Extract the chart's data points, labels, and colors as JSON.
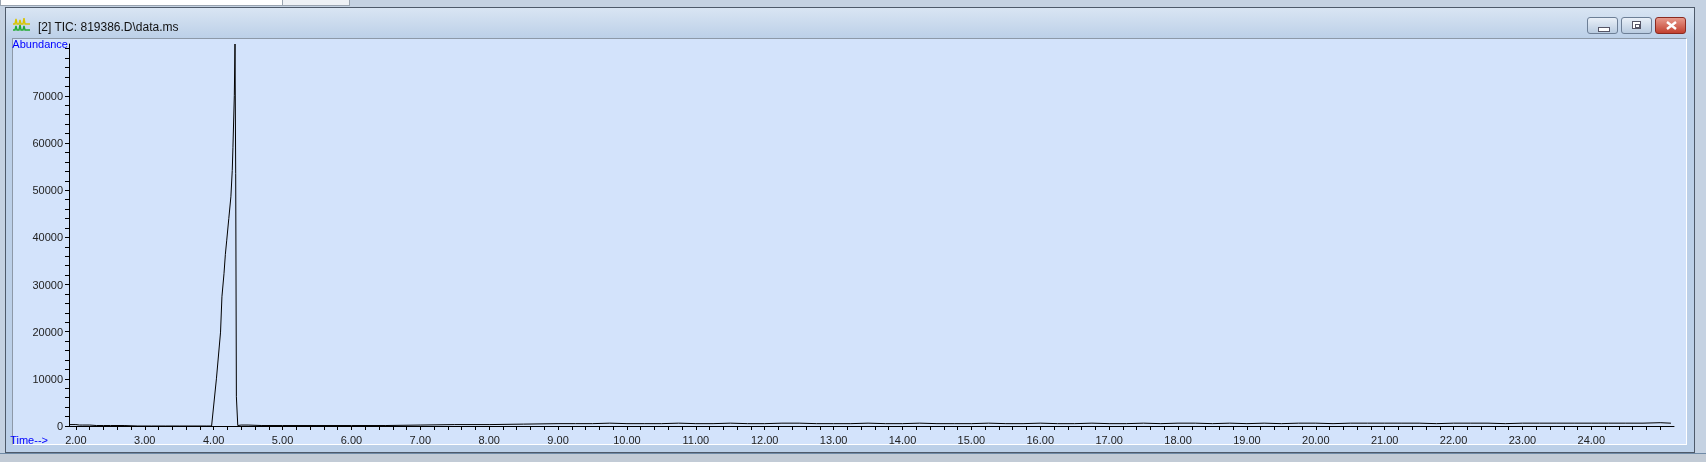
{
  "chart_data": {
    "type": "line",
    "title": "[2] TIC: 819386.D\\data.ms",
    "xlabel": "Time-->",
    "ylabel": "Abundance",
    "color": "#000000",
    "x": [
      1.92,
      2.0,
      2.05,
      2.1,
      2.2,
      2.3,
      2.4,
      2.5,
      2.7,
      2.9,
      3.1,
      3.3,
      3.5,
      3.7,
      3.9,
      3.97,
      4.04,
      4.1,
      4.12,
      4.15,
      4.17,
      4.19,
      4.22,
      4.25,
      4.27,
      4.28,
      4.3,
      4.31,
      4.32,
      4.33,
      4.35,
      4.4,
      4.5,
      4.7,
      5.0,
      5.5,
      6.0,
      6.5,
      7.0,
      7.5,
      8.0,
      8.5,
      9.0,
      9.25,
      9.5,
      9.75,
      10.0,
      10.25,
      10.5,
      10.75,
      11.0,
      11.25,
      11.5,
      11.75,
      12.0,
      12.25,
      12.5,
      12.75,
      13.0,
      13.25,
      13.5,
      13.75,
      14.0,
      14.25,
      14.5,
      14.75,
      15.0,
      15.25,
      15.5,
      15.75,
      16.0,
      16.25,
      16.5,
      16.75,
      17.0,
      17.25,
      17.5,
      17.75,
      18.0,
      18.25,
      18.5,
      18.75,
      19.0,
      19.25,
      19.5,
      19.75,
      20.0,
      20.25,
      20.5,
      20.75,
      21.0,
      21.25,
      21.5,
      21.75,
      22.0,
      22.25,
      22.5,
      22.75,
      23.0,
      23.25,
      23.5,
      23.75,
      24.0,
      24.25,
      24.5,
      24.75,
      25.0,
      25.15
    ],
    "values": [
      300,
      300,
      200,
      200,
      200,
      100,
      100,
      100,
      100,
      0,
      0,
      0,
      0,
      0,
      0,
      0,
      10000,
      19900,
      27400,
      32300,
      36400,
      39400,
      44000,
      48600,
      54200,
      59100,
      70100,
      81000,
      53500,
      6200,
      100,
      200,
      200,
      100,
      100,
      100,
      100,
      100,
      200,
      300,
      300,
      400,
      500,
      500,
      500,
      600,
      500,
      500,
      500,
      600,
      500,
      500,
      600,
      500,
      500,
      600,
      600,
      500,
      500,
      500,
      600,
      500,
      500,
      600,
      500,
      500,
      500,
      600,
      500,
      500,
      600,
      500,
      500,
      600,
      500,
      500,
      600,
      500,
      600,
      600,
      500,
      600,
      500,
      600,
      500,
      600,
      600,
      500,
      600,
      600,
      600,
      600,
      600,
      500,
      600,
      600,
      600,
      500,
      600,
      600,
      600,
      600,
      600,
      600,
      600,
      600,
      700,
      600
    ],
    "xlim": [
      1.9,
      25.2
    ],
    "xticks": [
      {
        "value": 2,
        "label": "2.00"
      },
      {
        "value": 2.2,
        "label": null
      },
      {
        "value": 2.4,
        "label": null
      },
      {
        "value": 2.6,
        "label": null
      },
      {
        "value": 2.8,
        "label": null
      },
      {
        "value": 3,
        "label": "3.00"
      },
      {
        "value": 3.2,
        "label": null
      },
      {
        "value": 3.4,
        "label": null
      },
      {
        "value": 3.6,
        "label": null
      },
      {
        "value": 3.8,
        "label": null
      },
      {
        "value": 4,
        "label": "4.00"
      },
      {
        "value": 4.2,
        "label": null
      },
      {
        "value": 4.4,
        "label": null
      },
      {
        "value": 4.6,
        "label": null
      },
      {
        "value": 4.8,
        "label": null
      },
      {
        "value": 5,
        "label": "5.00"
      },
      {
        "value": 5.2,
        "label": null
      },
      {
        "value": 5.4,
        "label": null
      },
      {
        "value": 5.6,
        "label": null
      },
      {
        "value": 5.8,
        "label": null
      },
      {
        "value": 6,
        "label": "6.00"
      },
      {
        "value": 6.2,
        "label": null
      },
      {
        "value": 6.4,
        "label": null
      },
      {
        "value": 6.6,
        "label": null
      },
      {
        "value": 6.8,
        "label": null
      },
      {
        "value": 7,
        "label": "7.00"
      },
      {
        "value": 7.2,
        "label": null
      },
      {
        "value": 7.4,
        "label": null
      },
      {
        "value": 7.6,
        "label": null
      },
      {
        "value": 7.8,
        "label": null
      },
      {
        "value": 8,
        "label": "8.00"
      },
      {
        "value": 8.2,
        "label": null
      },
      {
        "value": 8.4,
        "label": null
      },
      {
        "value": 8.6,
        "label": null
      },
      {
        "value": 8.8,
        "label": null
      },
      {
        "value": 9,
        "label": "9.00"
      },
      {
        "value": 9.2,
        "label": null
      },
      {
        "value": 9.4,
        "label": null
      },
      {
        "value": 9.6,
        "label": null
      },
      {
        "value": 9.8,
        "label": null
      },
      {
        "value": 10,
        "label": "10.00"
      },
      {
        "value": 10.2,
        "label": null
      },
      {
        "value": 10.4,
        "label": null
      },
      {
        "value": 10.6,
        "label": null
      },
      {
        "value": 10.8,
        "label": null
      },
      {
        "value": 11,
        "label": "11.00"
      },
      {
        "value": 11.2,
        "label": null
      },
      {
        "value": 11.4,
        "label": null
      },
      {
        "value": 11.6,
        "label": null
      },
      {
        "value": 11.8,
        "label": null
      },
      {
        "value": 12,
        "label": "12.00"
      },
      {
        "value": 12.2,
        "label": null
      },
      {
        "value": 12.4,
        "label": null
      },
      {
        "value": 12.6,
        "label": null
      },
      {
        "value": 12.8,
        "label": null
      },
      {
        "value": 13,
        "label": "13.00"
      },
      {
        "value": 13.2,
        "label": null
      },
      {
        "value": 13.4,
        "label": null
      },
      {
        "value": 13.6,
        "label": null
      },
      {
        "value": 13.8,
        "label": null
      },
      {
        "value": 14,
        "label": "14.00"
      },
      {
        "value": 14.2,
        "label": null
      },
      {
        "value": 14.4,
        "label": null
      },
      {
        "value": 14.6,
        "label": null
      },
      {
        "value": 14.8,
        "label": null
      },
      {
        "value": 15,
        "label": "15.00"
      },
      {
        "value": 15.2,
        "label": null
      },
      {
        "value": 15.4,
        "label": null
      },
      {
        "value": 15.6,
        "label": null
      },
      {
        "value": 15.8,
        "label": null
      },
      {
        "value": 16,
        "label": "16.00"
      },
      {
        "value": 16.2,
        "label": null
      },
      {
        "value": 16.4,
        "label": null
      },
      {
        "value": 16.6,
        "label": null
      },
      {
        "value": 16.8,
        "label": null
      },
      {
        "value": 17,
        "label": "17.00"
      },
      {
        "value": 17.2,
        "label": null
      },
      {
        "value": 17.4,
        "label": null
      },
      {
        "value": 17.6,
        "label": null
      },
      {
        "value": 17.8,
        "label": null
      },
      {
        "value": 18,
        "label": "18.00"
      },
      {
        "value": 18.2,
        "label": null
      },
      {
        "value": 18.4,
        "label": null
      },
      {
        "value": 18.6,
        "label": null
      },
      {
        "value": 18.8,
        "label": null
      },
      {
        "value": 19,
        "label": "19.00"
      },
      {
        "value": 19.2,
        "label": null
      },
      {
        "value": 19.4,
        "label": null
      },
      {
        "value": 19.6,
        "label": null
      },
      {
        "value": 19.8,
        "label": null
      },
      {
        "value": 20,
        "label": "20.00"
      },
      {
        "value": 20.2,
        "label": null
      },
      {
        "value": 20.4,
        "label": null
      },
      {
        "value": 20.6,
        "label": null
      },
      {
        "value": 20.8,
        "label": null
      },
      {
        "value": 21,
        "label": "21.00"
      },
      {
        "value": 21.2,
        "label": null
      },
      {
        "value": 21.4,
        "label": null
      },
      {
        "value": 21.6,
        "label": null
      },
      {
        "value": 21.8,
        "label": null
      },
      {
        "value": 22,
        "label": "22.00"
      },
      {
        "value": 22.2,
        "label": null
      },
      {
        "value": 22.4,
        "label": null
      },
      {
        "value": 22.6,
        "label": null
      },
      {
        "value": 22.8,
        "label": null
      },
      {
        "value": 23,
        "label": "23.00"
      },
      {
        "value": 23.2,
        "label": null
      },
      {
        "value": 23.4,
        "label": null
      },
      {
        "value": 23.6,
        "label": null
      },
      {
        "value": 23.8,
        "label": null
      },
      {
        "value": 24,
        "label": "24.00"
      },
      {
        "value": 24.2,
        "label": null
      },
      {
        "value": 24.4,
        "label": null
      },
      {
        "value": 24.6,
        "label": null
      },
      {
        "value": 24.8,
        "label": null
      },
      {
        "value": 25,
        "label": null
      }
    ],
    "ylim": [
      0,
      81000
    ],
    "yticks": [
      0,
      {
        "value": 2000,
        "label": null
      },
      {
        "value": 4000,
        "label": null
      },
      {
        "value": 6000,
        "label": null
      },
      {
        "value": 8000,
        "label": null
      },
      10000,
      {
        "value": 12000,
        "label": null
      },
      {
        "value": 14000,
        "label": null
      },
      {
        "value": 16000,
        "label": null
      },
      {
        "value": 18000,
        "label": null
      },
      20000,
      {
        "value": 22000,
        "label": null
      },
      {
        "value": 24000,
        "label": null
      },
      {
        "value": 26000,
        "label": null
      },
      {
        "value": 28000,
        "label": null
      },
      30000,
      {
        "value": 32000,
        "label": null
      },
      {
        "value": 34000,
        "label": null
      },
      {
        "value": 36000,
        "label": null
      },
      {
        "value": 38000,
        "label": null
      },
      40000,
      {
        "value": 42000,
        "label": null
      },
      {
        "value": 44000,
        "label": null
      },
      {
        "value": 46000,
        "label": null
      },
      {
        "value": 48000,
        "label": null
      },
      50000,
      {
        "value": 52000,
        "label": null
      },
      {
        "value": 54000,
        "label": null
      },
      {
        "value": 56000,
        "label": null
      },
      {
        "value": 58000,
        "label": null
      },
      60000,
      {
        "value": 62000,
        "label": null
      },
      {
        "value": 64000,
        "label": null
      },
      {
        "value": 66000,
        "label": null
      },
      {
        "value": 68000,
        "label": null
      },
      70000,
      {
        "value": 72000,
        "label": null
      },
      {
        "value": 74000,
        "label": null
      },
      {
        "value": 76000,
        "label": null
      },
      {
        "value": 78000,
        "label": null
      },
      {
        "value": 80000,
        "label": null
      }
    ]
  }
}
